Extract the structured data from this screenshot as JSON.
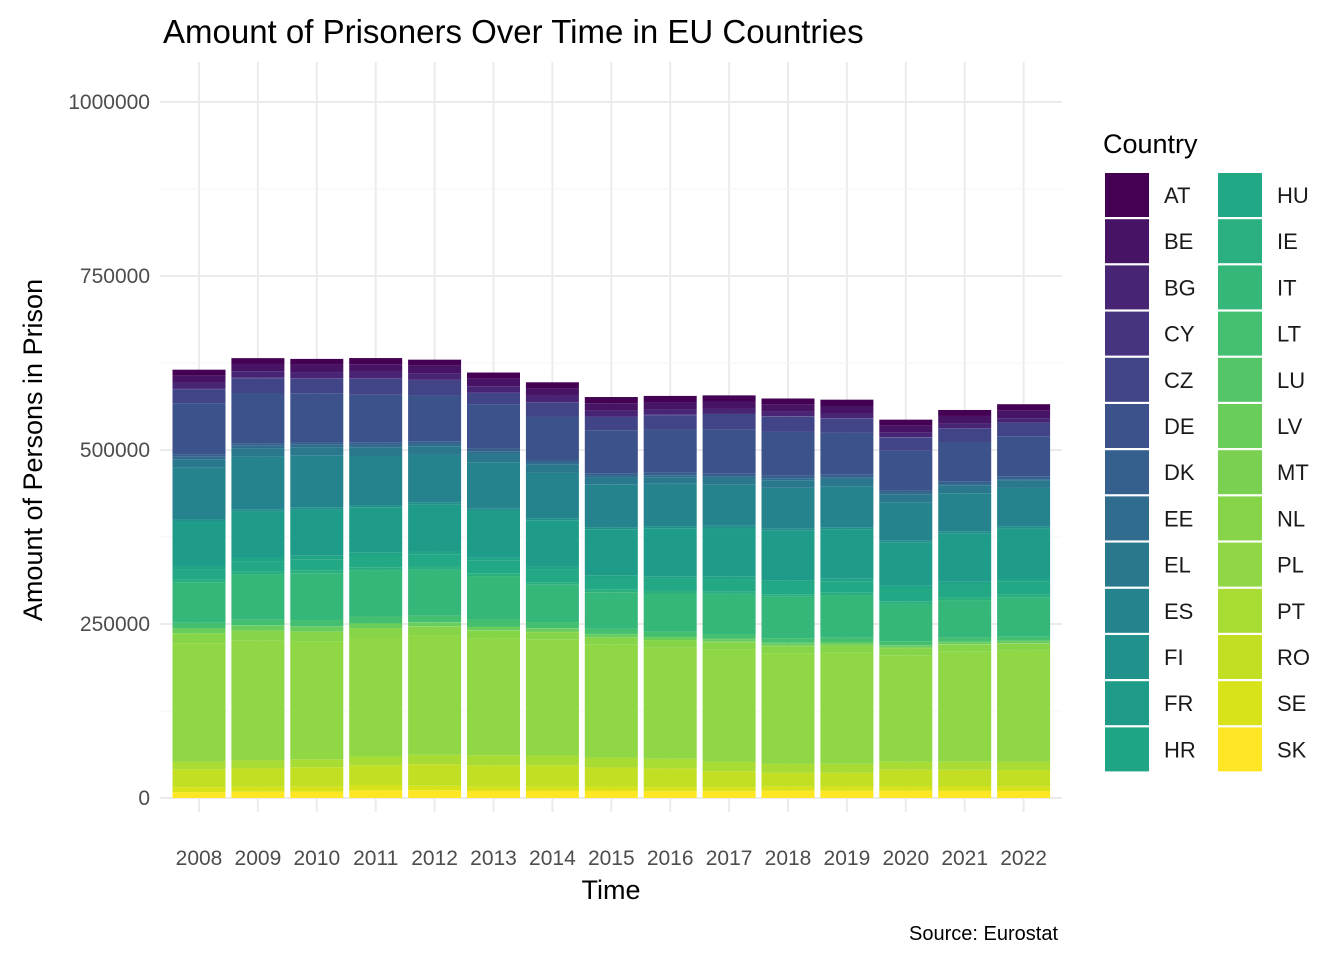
{
  "chart_data": {
    "type": "bar",
    "stacked": true,
    "title": "Amount of Prisoners Over Time in EU Countries",
    "xlabel": "Time",
    "ylabel": "Amount of Persons in Prison",
    "caption": "Source: Eurostat",
    "legend_title": "Country",
    "legend_position": "right",
    "grid": true,
    "ylim": [
      0,
      1000000
    ],
    "y_ticks": [
      0,
      250000,
      500000,
      750000,
      1000000
    ],
    "y_tick_labels": [
      "0",
      "250000",
      "500000",
      "750000",
      "1000000"
    ],
    "categories": [
      "2008",
      "2009",
      "2010",
      "2011",
      "2012",
      "2013",
      "2014",
      "2015",
      "2016",
      "2017",
      "2018",
      "2019",
      "2020",
      "2021",
      "2022"
    ],
    "series": [
      {
        "name": "AT",
        "color": "#440154",
        "values": [
          8200,
          8400,
          8600,
          8800,
          8800,
          8800,
          8800,
          8800,
          8800,
          8800,
          8900,
          9100,
          8700,
          8600,
          8800
        ]
      },
      {
        "name": "BE",
        "color": "#471365",
        "values": [
          10300,
          10400,
          10300,
          10600,
          10900,
          10900,
          10800,
          10800,
          10900,
          10700,
          10300,
          10700,
          10100,
          10700,
          11200
        ]
      },
      {
        "name": "BG",
        "color": "#482475",
        "values": [
          9100,
          9400,
          9100,
          9700,
          9300,
          8800,
          8900,
          8400,
          7300,
          6600,
          6200,
          6700,
          6500,
          6700,
          6100
        ]
      },
      {
        "name": "CY",
        "color": "#463480",
        "values": [
          600,
          700,
          700,
          900,
          900,
          900,
          700,
          600,
          700,
          700,
          700,
          800,
          700,
          800,
          900
        ]
      },
      {
        "name": "CZ",
        "color": "#414487",
        "values": [
          19900,
          21200,
          20600,
          22700,
          21500,
          16000,
          20600,
          19100,
          19900,
          21700,
          21400,
          20400,
          18800,
          19200,
          19000
        ]
      },
      {
        "name": "DE",
        "color": "#3b528b",
        "values": [
          73600,
          72000,
          70200,
          68100,
          65900,
          63900,
          61900,
          61700,
          62900,
          64100,
          63600,
          59500,
          56400,
          56300,
          57500
        ]
      },
      {
        "name": "DK",
        "color": "#355f8d",
        "values": [
          3400,
          3700,
          3900,
          4000,
          3800,
          3900,
          3600,
          3400,
          3400,
          3500,
          3600,
          4100,
          4100,
          4100,
          4200
        ]
      },
      {
        "name": "EE",
        "color": "#2f6c8e",
        "values": [
          3600,
          3500,
          3400,
          3400,
          3300,
          3100,
          3100,
          2900,
          2800,
          2700,
          2700,
          2600,
          2500,
          2400,
          2400
        ]
      },
      {
        "name": "EL",
        "color": "#2a788e",
        "values": [
          12300,
          11900,
          12400,
          12500,
          12500,
          12700,
          11800,
          9600,
          9600,
          9600,
          10700,
          11100,
          11000,
          10800,
          10200
        ]
      },
      {
        "name": "ES",
        "color": "#25838e",
        "values": [
          73600,
          76100,
          73900,
          70500,
          68600,
          66800,
          65000,
          61600,
          60700,
          59100,
          58900,
          58400,
          55100,
          55400,
          55900
        ]
      },
      {
        "name": "FI",
        "color": "#21918c",
        "values": [
          3500,
          3200,
          3200,
          3200,
          3100,
          3100,
          3100,
          3100,
          3100,
          3100,
          3000,
          2900,
          2900,
          2900,
          2900
        ]
      },
      {
        "name": "FR",
        "color": "#1e9c89",
        "values": [
          64000,
          66000,
          66500,
          64500,
          67000,
          67000,
          67000,
          66000,
          69000,
          70000,
          71000,
          71000,
          62000,
          69000,
          72000
        ]
      },
      {
        "name": "HR",
        "color": "#20a486",
        "values": [
          4900,
          5100,
          5000,
          4800,
          4700,
          4400,
          3800,
          3300,
          3100,
          3300,
          3400,
          3500,
          3800,
          3800,
          3900
        ]
      },
      {
        "name": "HU",
        "color": "#22a884",
        "values": [
          15000,
          15500,
          16000,
          17000,
          17500,
          18000,
          18000,
          17500,
          18000,
          17700,
          16700,
          16500,
          18400,
          18600,
          18900
        ]
      },
      {
        "name": "IE",
        "color": "#2ab07f",
        "values": [
          3600,
          3900,
          4300,
          4400,
          4300,
          4100,
          3800,
          3700,
          3700,
          3700,
          3900,
          4000,
          3800,
          3800,
          4100
        ]
      },
      {
        "name": "IT",
        "color": "#35b779",
        "values": [
          58100,
          64800,
          67100,
          66300,
          65700,
          62500,
          53600,
          52200,
          54700,
          57600,
          59600,
          60800,
          53400,
          54100,
          56200
        ]
      },
      {
        "name": "LT",
        "color": "#44bf70",
        "values": [
          7500,
          8100,
          9100,
          9300,
          9500,
          10000,
          8900,
          7700,
          7100,
          6600,
          6400,
          6100,
          5800,
          5700,
          5500
        ]
      },
      {
        "name": "LU",
        "color": "#55c667",
        "values": [
          700,
          700,
          700,
          700,
          700,
          700,
          600,
          600,
          700,
          700,
          700,
          700,
          600,
          600,
          600
        ]
      },
      {
        "name": "LV",
        "color": "#69cd5b",
        "values": [
          6500,
          6900,
          6600,
          6500,
          5100,
          4800,
          4700,
          4400,
          4300,
          3800,
          3600,
          3400,
          3200,
          3100,
          3200
        ]
      },
      {
        "name": "MT",
        "color": "#7ad151",
        "values": [
          500,
          500,
          600,
          600,
          600,
          600,
          600,
          600,
          600,
          600,
          700,
          800,
          800,
          800,
          800
        ]
      },
      {
        "name": "NL",
        "color": "#86d549",
        "values": [
          14000,
          14000,
          14000,
          13000,
          12000,
          11000,
          10000,
          10000,
          10000,
          10000,
          10000,
          10000,
          10000,
          10000,
          10000
        ]
      },
      {
        "name": "PL",
        "color": "#8fd744",
        "values": [
          170000,
          172000,
          169000,
          171000,
          172000,
          168000,
          167000,
          162000,
          160000,
          162000,
          159000,
          160000,
          153000,
          158000,
          159000
        ]
      },
      {
        "name": "PT",
        "color": "#a8db34",
        "values": [
          11000,
          11000,
          11500,
          12600,
          13600,
          14300,
          14000,
          14200,
          13800,
          13400,
          12900,
          12800,
          11400,
          11600,
          12200
        ]
      },
      {
        "name": "RO",
        "color": "#c2df23",
        "values": [
          26000,
          27000,
          28000,
          29000,
          31000,
          31000,
          31000,
          28000,
          27000,
          23000,
          20000,
          20000,
          24000,
          24000,
          24000
        ]
      },
      {
        "name": "SE",
        "color": "#d7e219",
        "values": [
          7000,
          7000,
          7000,
          7000,
          6400,
          5900,
          5900,
          5800,
          5800,
          5800,
          5800,
          6000,
          6100,
          6300,
          6300
        ]
      },
      {
        "name": "SK",
        "color": "#fde725",
        "values": [
          8500,
          9000,
          9200,
          11000,
          11100,
          10100,
          10100,
          10100,
          9800,
          9700,
          10300,
          10400,
          10500,
          10200,
          10000
        ]
      }
    ]
  }
}
